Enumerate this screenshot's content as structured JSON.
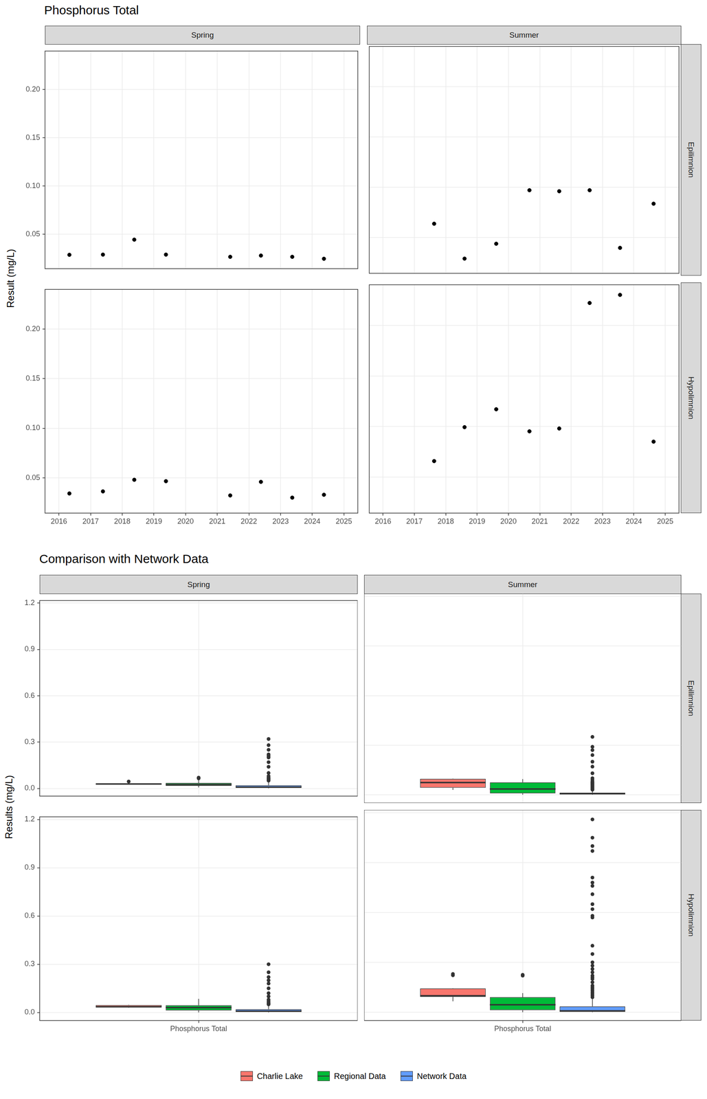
{
  "chart_data": [
    {
      "type": "scatter",
      "title": "Phosphorus Total",
      "y_label": "Result (mg/L)",
      "columns": [
        "Spring",
        "Summer"
      ],
      "rows": [
        "Epilimnion",
        "Hypolimnion"
      ],
      "xlim": [
        2015.56,
        2025.44
      ],
      "xticks": [
        2016,
        2017,
        2018,
        2019,
        2020,
        2021,
        2022,
        2023,
        2024,
        2025
      ],
      "ylim": [
        0.0144,
        0.24
      ],
      "yticks": [
        0.05,
        {
          "value": 0.1,
          "label": "0.10"
        },
        0.15,
        {
          "value": 0.2,
          "label": "0.20"
        }
      ],
      "grid": true,
      "color": "#000000",
      "marker": "circle",
      "facets": [
        {
          "column": "Spring",
          "row": "Epilimnion",
          "x": [
            2016.33,
            2017.39,
            2018.38,
            2019.38,
            2021.41,
            2022.38,
            2023.37,
            2024.37
          ],
          "values": [
            0.0288,
            0.029,
            0.0445,
            0.029,
            0.0267,
            0.028,
            0.0267,
            0.0247
          ]
        },
        {
          "column": "Summer",
          "row": "Epilimnion",
          "x": [
            2017.63,
            2018.6,
            2019.61,
            2020.67,
            2021.62,
            2022.59,
            2023.56,
            2024.63
          ],
          "values": [
            0.0637,
            0.029,
            0.0438,
            0.097,
            0.096,
            0.097,
            0.0397,
            0.0836
          ]
        },
        {
          "column": "Spring",
          "row": "Hypolimnion",
          "x": [
            2016.33,
            2017.39,
            2018.38,
            2019.38,
            2021.41,
            2022.38,
            2023.37,
            2024.37
          ],
          "values": [
            0.0342,
            0.0363,
            0.048,
            0.0466,
            0.0322,
            0.0459,
            0.03,
            0.0329
          ]
        },
        {
          "column": "Summer",
          "row": "Hypolimnion",
          "x": [
            2017.63,
            2018.6,
            2019.61,
            2020.67,
            2021.62,
            2022.59,
            2023.56,
            2024.63
          ],
          "values": [
            0.0658,
            0.0993,
            0.117,
            0.0952,
            0.098,
            0.222,
            0.23,
            0.085
          ]
        }
      ]
    },
    {
      "type": "boxplot",
      "title": "Comparison with Network Data",
      "y_label": "Results (mg/L)",
      "columns": [
        "Spring",
        "Summer"
      ],
      "rows": [
        "Epilimnion",
        "Hypolimnion"
      ],
      "categories": [
        "Phosphorus Total"
      ],
      "ylim": [
        -0.05,
        1.217
      ],
      "yticks": [
        {
          "value": 0,
          "label": "0.0"
        },
        0.3,
        0.6,
        0.9,
        1.2
      ],
      "grid": true,
      "legend": "bottom",
      "series": [
        {
          "name": "Charlie Lake",
          "color": "#F8766D"
        },
        {
          "name": "Regional Data",
          "color": "#00BA38"
        },
        {
          "name": "Network Data",
          "color": "#619CFF"
        }
      ],
      "facets": [
        {
          "column": "Spring",
          "row": "Epilimnion",
          "stats": [
            {
              "low": 0.0247,
              "q1": 0.0267,
              "median": 0.0284,
              "q3": 0.029,
              "high": 0.029,
              "outliers": [
                0.0445
              ]
            },
            {
              "low": 0.006,
              "q1": 0.017,
              "median": 0.025,
              "q3": 0.035,
              "high": 0.06,
              "outliers": [
                0.065,
                0.07
              ]
            },
            {
              "low": 0,
              "q1": 0.003,
              "median": 0.008,
              "q3": 0.02,
              "high": 0.045,
              "outliers": [
                0.05,
                0.055,
                0.06,
                0.065,
                0.07,
                0.08,
                0.1,
                0.14,
                0.17,
                0.2,
                0.21,
                0.22,
                0.25,
                0.28,
                0.32
              ]
            }
          ]
        },
        {
          "column": "Summer",
          "row": "Epilimnion",
          "stats": [
            {
              "low": 0.029,
              "q1": 0.042,
              "median": 0.0737,
              "q3": 0.0963,
              "high": 0.097,
              "outliers": []
            },
            {
              "low": 0,
              "q1": 0.008,
              "median": 0.035,
              "q3": 0.075,
              "high": 0.095,
              "outliers": []
            },
            {
              "low": 0,
              "q1": 0.002,
              "median": 0.006,
              "q3": 0.012,
              "high": 0.028,
              "outliers": [
                0.03,
                0.035,
                0.04,
                0.045,
                0.05,
                0.055,
                0.06,
                0.065,
                0.07,
                0.075,
                0.08,
                0.09,
                0.1,
                0.13,
                0.17,
                0.2,
                0.24,
                0.27,
                0.29,
                0.35
              ]
            }
          ]
        },
        {
          "column": "Spring",
          "row": "Hypolimnion",
          "stats": [
            {
              "low": 0.03,
              "q1": 0.0327,
              "median": 0.035,
              "q3": 0.046,
              "high": 0.048,
              "outliers": []
            },
            {
              "low": 0,
              "q1": 0.012,
              "median": 0.03,
              "q3": 0.045,
              "high": 0.085,
              "outliers": []
            },
            {
              "low": 0,
              "q1": 0.003,
              "median": 0.008,
              "q3": 0.02,
              "high": 0.045,
              "outliers": [
                0.05,
                0.055,
                0.06,
                0.07,
                0.08,
                0.1,
                0.12,
                0.15,
                0.18,
                0.2,
                0.22,
                0.25,
                0.3
              ]
            }
          ]
        },
        {
          "column": "Summer",
          "row": "Hypolimnion",
          "stats": [
            {
              "low": 0.0658,
              "q1": 0.092,
              "median": 0.0987,
              "q3": 0.143,
              "high": 0.117,
              "outliers": [
                0.222,
                0.23
              ]
            },
            {
              "low": 0,
              "q1": 0.012,
              "median": 0.045,
              "q3": 0.09,
              "high": 0.115,
              "outliers": [
                0.22,
                0.225
              ]
            },
            {
              "low": 0,
              "q1": 0.002,
              "median": 0.008,
              "q3": 0.035,
              "high": 0.08,
              "outliers": [
                0.09,
                0.1,
                0.11,
                0.12,
                0.13,
                0.14,
                0.15,
                0.16,
                0.18,
                0.2,
                0.21,
                0.22,
                0.24,
                0.26,
                0.28,
                0.3,
                0.35,
                0.4,
                0.57,
                0.58,
                0.62,
                0.65,
                0.71,
                0.76,
                0.78,
                0.81,
                0.97,
                1.0,
                1.05,
                1.16
              ]
            }
          ]
        }
      ]
    }
  ]
}
